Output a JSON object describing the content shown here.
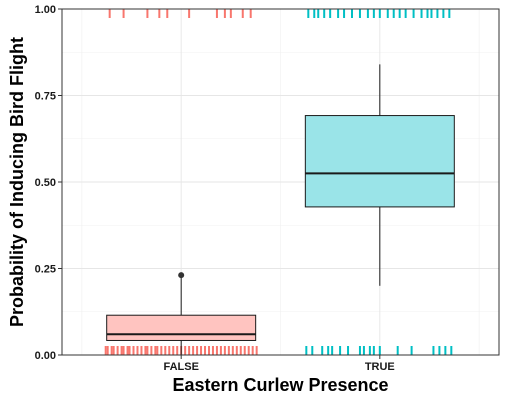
{
  "chart_data": {
    "type": "box",
    "title": "",
    "xlabel": "Eastern Curlew Presence",
    "ylabel": "Probability of Inducing Bird Flight",
    "ylim": [
      0,
      1
    ],
    "yticks": [
      0,
      0.25,
      0.5,
      0.75,
      1
    ],
    "ytick_labels": [
      "0.00",
      "0.25",
      "0.50",
      "0.75",
      "1.00"
    ],
    "categories": [
      "FALSE",
      "TRUE"
    ],
    "grid": true,
    "legend": "none",
    "boxes": [
      {
        "name": "FALSE",
        "color": "#f8766d",
        "fill": "#ffc4c0",
        "whisker_low": 0.0,
        "q1": 0.042,
        "median": 0.06,
        "q3": 0.115,
        "whisker_high": 0.225,
        "outliers": [
          0.231
        ]
      },
      {
        "name": "TRUE",
        "color": "#00bfc4",
        "fill": "#9ae4e8",
        "whisker_low": 0.2,
        "q1": 0.428,
        "median": 0.525,
        "q3": 0.692,
        "whisker_high": 0.84,
        "outliers": []
      }
    ],
    "rug_top": [
      {
        "category": "FALSE",
        "x": [
          0.64,
          0.71,
          0.83,
          0.89,
          0.93,
          1.04,
          1.18,
          1.22,
          1.25,
          1.31,
          1.35
        ]
      },
      {
        "category": "TRUE",
        "x": [
          1.64,
          1.67,
          1.69,
          1.72,
          1.75,
          1.79,
          1.82,
          1.86,
          1.9,
          1.94,
          1.97,
          2.0,
          2.04,
          2.07,
          2.1,
          2.13,
          2.17,
          2.21,
          2.24,
          2.26,
          2.29,
          2.32,
          2.35
        ]
      }
    ],
    "rug_bottom": [
      {
        "category": "FALSE",
        "x": [
          0.62,
          0.63,
          0.65,
          0.66,
          0.68,
          0.7,
          0.71,
          0.73,
          0.74,
          0.76,
          0.78,
          0.8,
          0.82,
          0.83,
          0.85,
          0.87,
          0.88,
          0.9,
          0.92,
          0.94,
          0.96,
          0.98,
          1.0,
          1.02,
          1.04,
          1.06,
          1.08,
          1.1,
          1.12,
          1.14,
          1.16,
          1.18,
          1.2,
          1.22,
          1.24,
          1.26,
          1.28,
          1.3,
          1.32,
          1.34,
          1.36,
          1.38
        ]
      },
      {
        "category": "TRUE",
        "x": [
          1.63,
          1.66,
          1.71,
          1.74,
          1.76,
          1.8,
          1.84,
          1.9,
          1.92,
          1.95,
          1.97,
          2.0,
          2.09,
          2.16,
          2.27,
          2.3,
          2.33,
          2.36
        ]
      }
    ]
  }
}
